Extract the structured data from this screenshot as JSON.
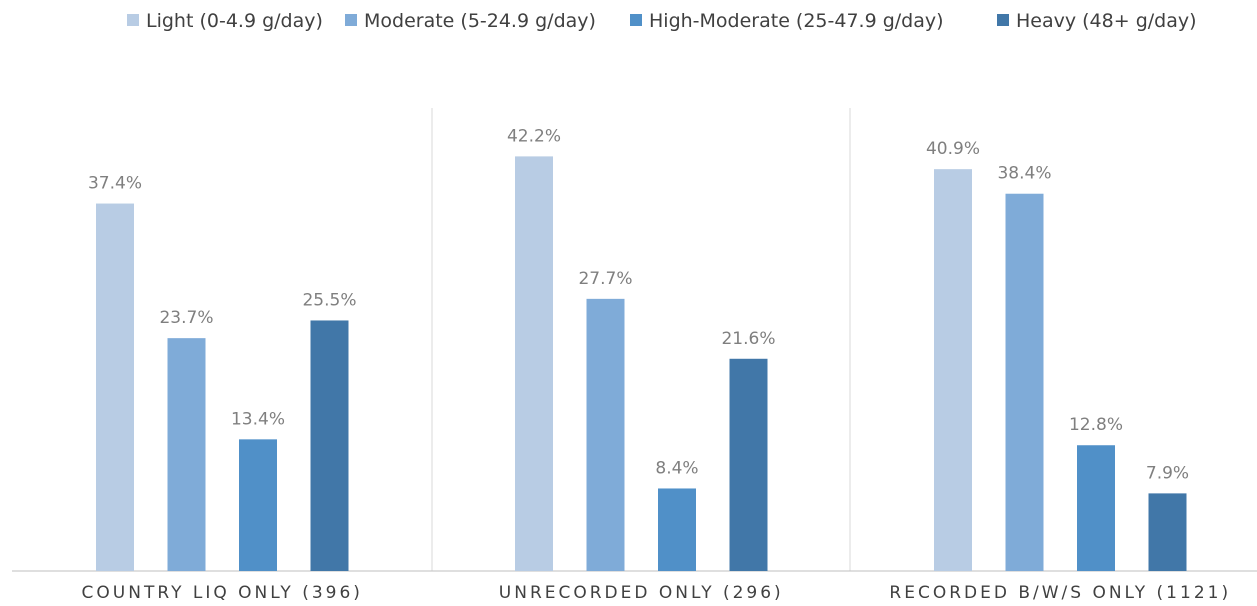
{
  "chart_data": {
    "type": "bar",
    "title": "",
    "xlabel": "",
    "ylabel": "",
    "ylim": [
      0,
      45
    ],
    "grid": false,
    "legend_position": "top",
    "categories": [
      "COUNTRY LIQ ONLY (396)",
      "UNRECORDED ONLY (296)",
      "RECORDED B/W/S ONLY (1121)"
    ],
    "series": [
      {
        "name": "Light (0-4.9 g/day)",
        "color": "#b8cce4",
        "values": [
          37.4,
          42.2,
          40.9
        ],
        "labels": [
          "37.4%",
          "42.2%",
          "40.9%"
        ]
      },
      {
        "name": "Moderate (5-24.9 g/day)",
        "color": "#7fabd8",
        "values": [
          23.7,
          27.7,
          38.4
        ],
        "labels": [
          "23.7%",
          "27.7%",
          "38.4%"
        ]
      },
      {
        "name": "High-Moderate (25-47.9 g/day)",
        "color": "#5090c8",
        "values": [
          13.4,
          8.4,
          12.8
        ],
        "labels": [
          "13.4%",
          "8.4%",
          "12.8%"
        ]
      },
      {
        "name": "Heavy (48+ g/day)",
        "color": "#4177a8",
        "values": [
          25.5,
          21.6,
          7.9
        ],
        "labels": [
          "25.5%",
          "21.6%",
          "7.9%"
        ]
      }
    ]
  }
}
